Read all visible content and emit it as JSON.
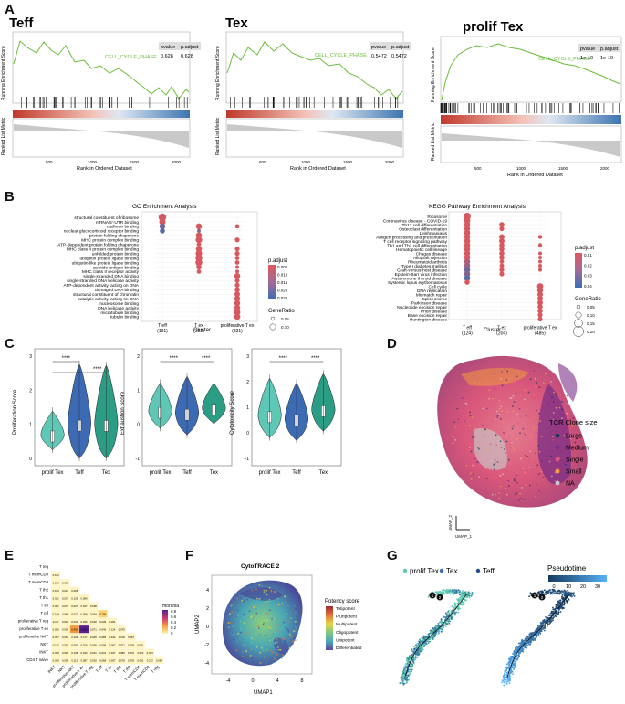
{
  "panels": {
    "A": {
      "letter": "A",
      "gsea": [
        {
          "title": "Teff",
          "pvalue": "0.628",
          "padjust": "0.628",
          "term": "CELL_CYCLE_PHASE"
        },
        {
          "title": "Tex",
          "pvalue": "0.5472",
          "padjust": "0.5472",
          "term": "CELL_CYCLE_PHASE"
        },
        {
          "title": "prolif Tex",
          "pvalue": "1e-10",
          "padjust": "1e-10",
          "term": "CELL_CYCLE_PHASE"
        }
      ],
      "headers": {
        "pvalue": "pvalue",
        "padjust": "p.adjust"
      },
      "ylabel_es": "Running Enrichment Score",
      "ylabel_rank": "Ranked List Metric",
      "xlabel": "Rank in Ordered Dataset",
      "xticks": [
        "500",
        "1000",
        "1500",
        "2000"
      ]
    },
    "B": {
      "letter": "B",
      "go_title": "GO Enrichment Analysis",
      "kegg_title": "KEGG Pathway Enrichment Analysis",
      "cluster_label": "Cluster",
      "padjust_label": "p.adjust",
      "generatio_label": "GeneRatio",
      "go_terms": [
        "structural constituent of ribosome",
        "mRNA 5'-UTR binding",
        "cadherin binding",
        "nuclear glucocorticoid receptor binding",
        "protein folding chaperone",
        "MHC protein complex binding",
        "ATP-dependent protein folding chaperone",
        "MHC class II protein complex binding",
        "unfolded protein binding",
        "ubiquitin protein ligase binding",
        "ubiquitin-like protein ligase binding",
        "peptide antigen binding",
        "MHC class II receptor activity",
        "single-stranded DNA binding",
        "single-stranded DNA helicase activity",
        "ATP-dependent activity, acting on DNA",
        "damaged DNA binding",
        "structural constituent of chromatin",
        "catalytic activity, acting on DNA",
        "nucleosome binding",
        "DNA helicase activity",
        "microtubule binding",
        "tubulin binding"
      ],
      "go_clusters": [
        {
          "name": "T eff",
          "n": "(191)"
        },
        {
          "name": "T ex",
          "n": "(358)"
        },
        {
          "name": "proliferative T ex",
          "n": "(831)"
        }
      ],
      "go_legend_ticks": [
        "0.025",
        "0.020",
        "0.015",
        "0.010",
        "0.005"
      ],
      "go_size_ticks": [
        "0.05",
        "0.10"
      ],
      "kegg_terms": [
        "Ribosome",
        "Coronavirus disease - COVID-19",
        "Th17 cell differentiation",
        "Osteoclast differentiation",
        "Leishmaniasis",
        "Antigen processing and presentation",
        "T cell receptor signaling pathway",
        "Th1 and Th2 cell differentiation",
        "Hematopoietic cell lineage",
        "Chagas disease",
        "Allograft rejection",
        "Rheumatoid arthritis",
        "Type I diabetes mellitus",
        "Graft-versus-host disease",
        "Epstein-Barr virus infection",
        "Autoimmune thyroid disease",
        "Systemic lupus erythematosus",
        "Cell cycle",
        "DNA replication",
        "Mismatch repair",
        "Spliceosome",
        "Parkinson disease",
        "Nucleotide excision repair",
        "Prion disease",
        "Base excision repair",
        "Huntington disease"
      ],
      "kegg_clusters": [
        {
          "name": "T eff",
          "n": "(124)"
        },
        {
          "name": "T ex",
          "n": "(204)"
        },
        {
          "name": "proliferative T ex",
          "n": "(485)"
        }
      ],
      "kegg_legend_ticks": [
        "0.04",
        "0.03",
        "0.02",
        "0.01"
      ],
      "kegg_size_ticks": [
        "0.05",
        "0.10",
        "0.15",
        "0.20"
      ]
    },
    "C": {
      "letter": "C",
      "plots": [
        {
          "ylabel": "Proliferation Score",
          "yticks": [
            "0",
            "1",
            "2",
            "3"
          ],
          "stars": [
            "****",
            "****"
          ]
        },
        {
          "ylabel": "Exhaustion Score",
          "yticks": [
            "-1",
            "0",
            "1",
            "2"
          ],
          "stars": [
            "****",
            "****"
          ]
        },
        {
          "ylabel": "Cytotoxicity Score",
          "yticks": [
            "-1",
            "0",
            "1",
            "2",
            "3"
          ],
          "stars": [
            "****",
            "****"
          ]
        }
      ],
      "groups": [
        "prolif Tex",
        "Teff",
        "Tex"
      ]
    },
    "D": {
      "letter": "D",
      "legend_title": "TCR Clone size",
      "items": [
        {
          "label": "Large",
          "color": "#1b3a5c"
        },
        {
          "label": "Medium",
          "color": "#7b2f87"
        },
        {
          "label": "Single",
          "color": "#d9567a"
        },
        {
          "label": "Small",
          "color": "#f2a13a"
        },
        {
          "label": "NA",
          "color": "#c9c9c9"
        }
      ],
      "xlabel": "UMAP_1",
      "ylabel": "UMAP_2"
    },
    "E": {
      "letter": "E",
      "rows": [
        "T reg",
        "T memCD8",
        "T memCD4",
        "T th2",
        "T th1",
        "T ex",
        "T eff",
        "proliferative T reg",
        "proliferative T ex",
        "proliferative NKT",
        "NKT",
        "INKT",
        "CD4 T naive"
      ],
      "legend_title": "moranla",
      "legend_ticks": [
        "0.8",
        "0.6",
        "0.4",
        "0.2",
        "0"
      ],
      "cols": [
        "INKT",
        "NKT",
        "proliferative NKT",
        "proliferative T ex",
        "proliferative T reg",
        "T eff",
        "T ex",
        "T th1",
        "T th2",
        "T memCD4",
        "T memCD8",
        "T reg"
      ]
    },
    "F": {
      "letter": "F",
      "title": "CytoTRACE 2",
      "legend_title": "Potency score",
      "items": [
        "Totipotent",
        "Pluripotent",
        "Multipotent",
        "Oligopotent",
        "Unipotent",
        "Differentiated"
      ],
      "xlabel": "UMAP1",
      "ylabel": "UMAP2",
      "xticks": [
        "-4",
        "0",
        "4",
        "8"
      ],
      "yticks": [
        "4",
        "2",
        "0",
        "-2",
        "-4"
      ]
    },
    "G": {
      "letter": "G",
      "legend": [
        {
          "label": "prolif Tex",
          "color": "#5fc7b5"
        },
        {
          "label": "Tex",
          "color": "#3d6bb3"
        },
        {
          "label": "Teff",
          "color": "#1e4e8c"
        }
      ],
      "pseudotime_label": "Pseudotime",
      "pseudotime_ticks": [
        "0",
        "10",
        "20",
        "30"
      ],
      "nodes": [
        "1",
        "2"
      ]
    }
  }
}
